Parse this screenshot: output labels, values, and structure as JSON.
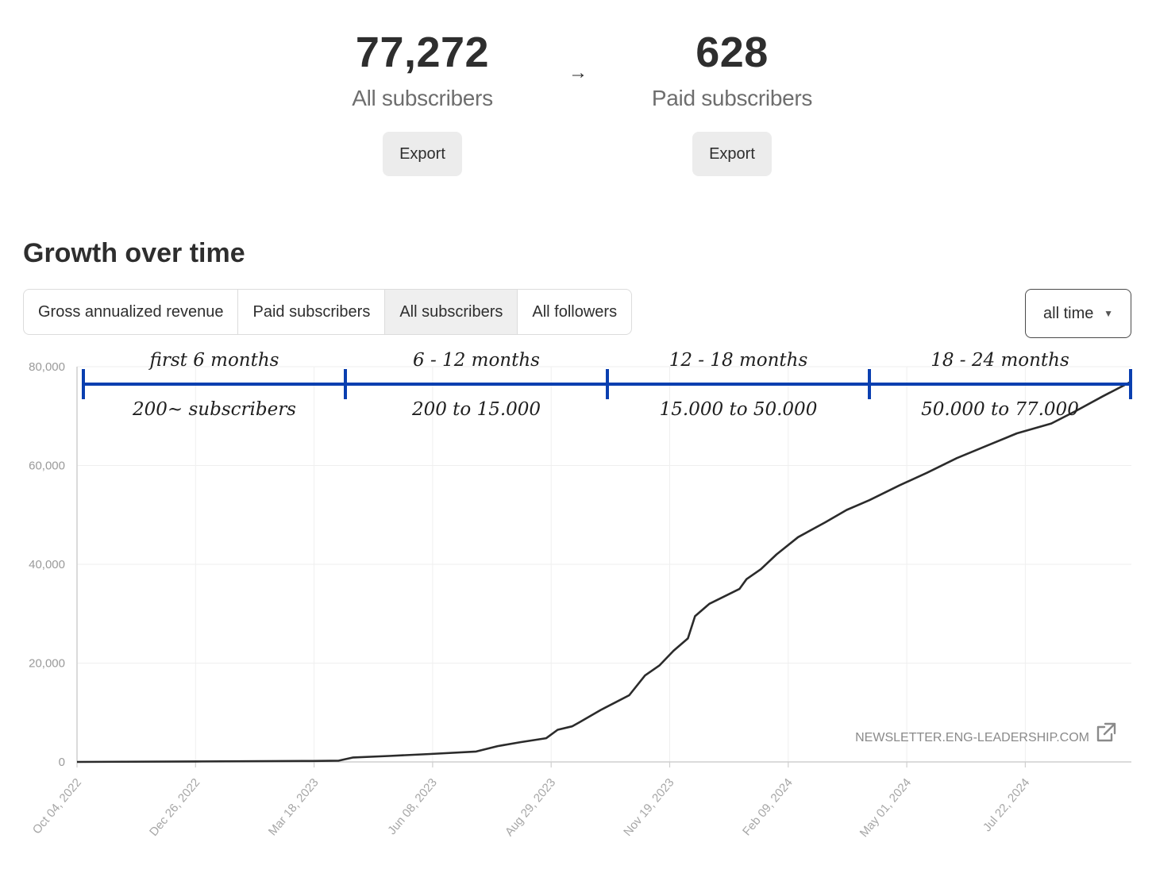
{
  "stats": {
    "all": {
      "value": "77,272",
      "label": "All subscribers",
      "export_label": "Export"
    },
    "arrow": "→",
    "paid": {
      "value": "628",
      "label": "Paid subscribers",
      "export_label": "Export"
    }
  },
  "section_title": "Growth over time",
  "tabs": [
    {
      "label": "Gross annualized revenue",
      "active": false
    },
    {
      "label": "Paid subscribers",
      "active": false
    },
    {
      "label": "All subscribers",
      "active": true
    },
    {
      "label": "All followers",
      "active": false
    }
  ],
  "range": {
    "selected": "all time",
    "caret_icon": "caret-down-icon"
  },
  "watermark": {
    "text": "NEWSLETTER.ENG-LEADERSHIP.COM",
    "icon": "external-link-icon"
  },
  "colors": {
    "line": "#2b2b2b",
    "annotation": "#0a3fb0",
    "grid": "#efefef"
  },
  "chart_data": {
    "type": "line",
    "title": "",
    "xlabel": "",
    "ylabel": "",
    "ylim": [
      0,
      80000
    ],
    "yticks": [
      0,
      20000,
      40000,
      60000,
      80000
    ],
    "ytick_labels": [
      "0",
      "20,000",
      "40,000",
      "60,000",
      "80,000"
    ],
    "xtick_labels": [
      "Oct 04, 2022",
      "Dec 26, 2022",
      "Mar 18, 2023",
      "Jun 08, 2023",
      "Aug 29, 2023",
      "Nov 19, 2023",
      "Feb 09, 2024",
      "May 01, 2024",
      "Jul 22, 2024"
    ],
    "xlim": [
      "2022-10-04",
      "2024-10-10"
    ],
    "grid": true,
    "series": [
      {
        "x": [
          "2022-10-04",
          "2022-12-26",
          "2023-03-18",
          "2023-04-05",
          "2023-04-15",
          "2023-05-10",
          "2023-06-08",
          "2023-07-10",
          "2023-07-25",
          "2023-08-10",
          "2023-08-28",
          "2023-09-05",
          "2023-09-15",
          "2023-09-20",
          "2023-10-05",
          "2023-10-15",
          "2023-10-25",
          "2023-11-05",
          "2023-11-15",
          "2023-11-25",
          "2023-12-05",
          "2023-12-10",
          "2023-12-20",
          "2024-01-10",
          "2024-01-15",
          "2024-01-25",
          "2024-02-05",
          "2024-02-20",
          "2024-03-10",
          "2024-03-25",
          "2024-04-10",
          "2024-05-01",
          "2024-05-20",
          "2024-06-10",
          "2024-07-01",
          "2024-07-22",
          "2024-08-15",
          "2024-09-01",
          "2024-09-20",
          "2024-10-10"
        ],
        "y": [
          0,
          100,
          200,
          250,
          900,
          1200,
          1600,
          2100,
          3200,
          4000,
          4800,
          6500,
          7200,
          8000,
          10500,
          12000,
          13500,
          17500,
          19500,
          22500,
          25000,
          29500,
          32000,
          35000,
          37000,
          39000,
          42000,
          45500,
          48500,
          51000,
          53000,
          56000,
          58500,
          61500,
          64000,
          66500,
          68500,
          71000,
          74000,
          77000
        ]
      }
    ],
    "annotations": {
      "periods": [
        {
          "label": "first 6 months",
          "range": "200~ subscribers"
        },
        {
          "label": "6 - 12 months",
          "range": "200 to 15.000"
        },
        {
          "label": "12 - 18 months",
          "range": "15.000 to 50.000"
        },
        {
          "label": "18 - 24 months",
          "range": "50.000 to 77.000"
        }
      ]
    }
  }
}
